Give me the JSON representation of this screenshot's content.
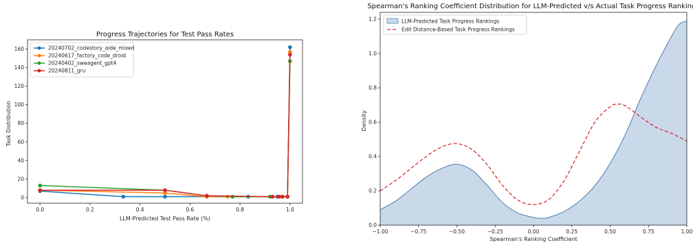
{
  "chart_data": [
    {
      "type": "line",
      "title": "Progress Trajectories for Test Pass Rates",
      "xlabel": "LLM-Predicted Test Pass Rate (%)",
      "ylabel": "Task Distribution",
      "xlim": [
        -0.05,
        1.05
      ],
      "ylim": [
        -6,
        170
      ],
      "xticks": [
        "0.0",
        "0.2",
        "0.4",
        "0.6",
        "0.8",
        "1.0"
      ],
      "yticks": [
        "0",
        "20",
        "40",
        "60",
        "80",
        "100",
        "120",
        "140",
        "160"
      ],
      "legend_position": "top-left",
      "grid": false,
      "series": [
        {
          "name": "20240702_codestory_aide_mixed",
          "color": "#1f77b4",
          "x": [
            0.0,
            0.333,
            0.5,
            0.667,
            0.833,
            0.95,
            0.99,
            1.0
          ],
          "y": [
            7,
            1,
            1,
            1,
            1,
            1,
            1,
            162
          ]
        },
        {
          "name": "20240617_factory_code_droid",
          "color": "#ff7f0e",
          "x": [
            0.0,
            0.5,
            0.667,
            0.75,
            0.93,
            0.96,
            0.99,
            1.0
          ],
          "y": [
            8,
            5,
            1,
            1,
            1,
            1,
            1,
            157
          ]
        },
        {
          "name": "20240402_sweagent_gpt4",
          "color": "#2ca02c",
          "x": [
            0.0,
            0.5,
            0.667,
            0.77,
            0.92,
            0.97,
            0.99,
            1.0
          ],
          "y": [
            13,
            8,
            2,
            1,
            1,
            1,
            1,
            147
          ]
        },
        {
          "name": "20240811_gru",
          "color": "#d62728",
          "x": [
            0.0,
            0.5,
            0.667,
            0.93,
            0.955,
            0.97,
            0.99,
            1.0
          ],
          "y": [
            8,
            8,
            2,
            1,
            1,
            1,
            1,
            154
          ]
        }
      ]
    },
    {
      "type": "area",
      "title": "Spearman's Ranking Coefficient Distribution for LLM-Predicted v/s Actual Task Progress Rankings",
      "xlabel": "Spearman's Ranking Coefficient",
      "ylabel": "Density",
      "xlim": [
        -1.0,
        1.0
      ],
      "ylim": [
        0.0,
        1.24
      ],
      "xticks": [
        "−1.00",
        "−0.75",
        "−0.50",
        "−0.25",
        "0.00",
        "0.25",
        "0.50",
        "0.75",
        "1.00"
      ],
      "yticks": [
        "0.0",
        "0.2",
        "0.4",
        "0.6",
        "0.8",
        "1.0",
        "1.2"
      ],
      "legend_position": "top-left",
      "grid": false,
      "series": [
        {
          "name": "LLM-Predicted Task Progress Rankings",
          "style": "filled",
          "color": "#5b84b1",
          "fill": "#c9d9ea",
          "x": [
            -1.0,
            -0.9,
            -0.8,
            -0.7,
            -0.6,
            -0.5,
            -0.4,
            -0.3,
            -0.2,
            -0.1,
            0.0,
            0.05,
            0.1,
            0.2,
            0.3,
            0.4,
            0.5,
            0.6,
            0.7,
            0.8,
            0.9,
            0.95,
            1.0
          ],
          "y": [
            0.09,
            0.14,
            0.21,
            0.28,
            0.33,
            0.355,
            0.32,
            0.23,
            0.13,
            0.07,
            0.045,
            0.04,
            0.045,
            0.08,
            0.14,
            0.23,
            0.36,
            0.53,
            0.74,
            0.93,
            1.1,
            1.17,
            1.19
          ]
        },
        {
          "name": "Edit Distance-Based Task Progress Rankings",
          "style": "dashed",
          "color": "#d62728",
          "x": [
            -1.0,
            -0.9,
            -0.8,
            -0.7,
            -0.6,
            -0.5,
            -0.4,
            -0.3,
            -0.2,
            -0.1,
            0.0,
            0.1,
            0.2,
            0.3,
            0.4,
            0.5,
            0.55,
            0.6,
            0.7,
            0.8,
            0.9,
            1.0
          ],
          "y": [
            0.2,
            0.26,
            0.33,
            0.4,
            0.455,
            0.475,
            0.44,
            0.35,
            0.23,
            0.145,
            0.12,
            0.15,
            0.26,
            0.43,
            0.6,
            0.69,
            0.705,
            0.695,
            0.63,
            0.57,
            0.535,
            0.49
          ]
        }
      ]
    }
  ]
}
